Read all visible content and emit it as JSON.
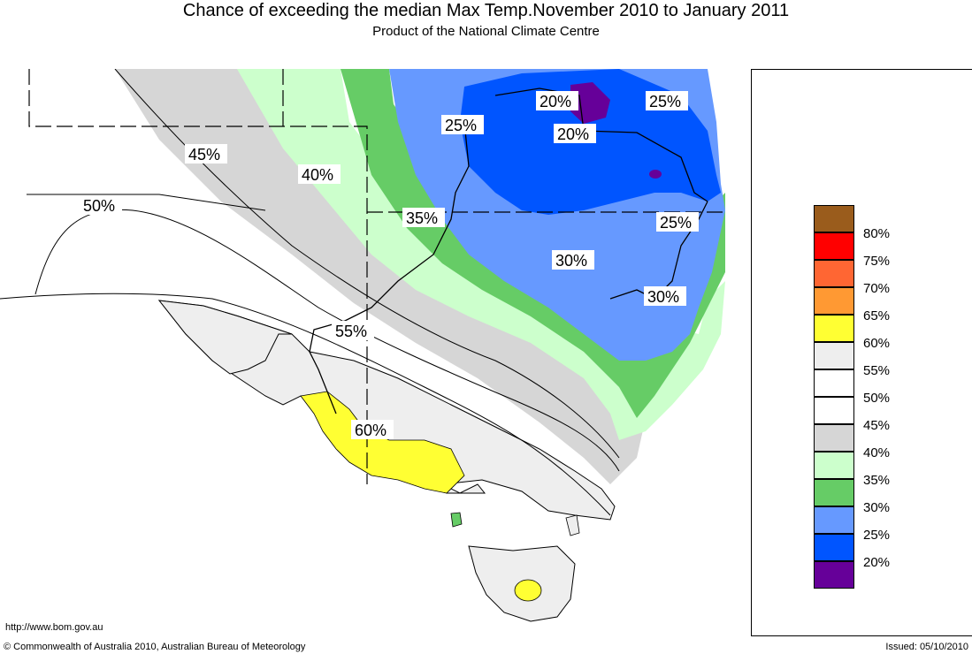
{
  "title": "Chance of exceeding the median Max Temp.November 2010 to January 2011",
  "subtitle": "Product of the National Climate Centre",
  "footer": {
    "url": "http://www.bom.gov.au",
    "copyright": "© Commonwealth of Australia 2010, Australian Bureau of Meteorology",
    "issued": "Issued: 05/10/2010"
  },
  "contour_labels": [
    "20%",
    "20%",
    "25%",
    "25%",
    "25%",
    "30%",
    "30%",
    "35%",
    "40%",
    "45%",
    "50%",
    "55%",
    "60%"
  ],
  "legend": {
    "items": [
      {
        "label": "80%",
        "color": "#9a5c1c"
      },
      {
        "label": "75%",
        "color": "#ff0000"
      },
      {
        "label": "70%",
        "color": "#ff6633"
      },
      {
        "label": "65%",
        "color": "#ff9933"
      },
      {
        "label": "60%",
        "color": "#ffff33"
      },
      {
        "label": "55%",
        "color": "#eeeeee"
      },
      {
        "label": "50%",
        "color": "#ffffff"
      },
      {
        "label": "45%",
        "color": "#ffffff"
      },
      {
        "label": "40%",
        "color": "#d6d6d6"
      },
      {
        "label": "35%",
        "color": "#ccffcc"
      },
      {
        "label": "30%",
        "color": "#66cc66"
      },
      {
        "label": "25%",
        "color": "#6699ff"
      },
      {
        "label": "20%",
        "color": "#0055ff"
      },
      {
        "label": "",
        "color": "#660099"
      }
    ]
  },
  "colors": {
    "land_55": "#eeeeee",
    "band_40": "#d6d6d6",
    "band_35": "#ccffcc",
    "band_30": "#66cc66",
    "band_25": "#6699ff",
    "band_20": "#0055ff",
    "band_15": "#660099",
    "band_60": "#ffff33"
  }
}
